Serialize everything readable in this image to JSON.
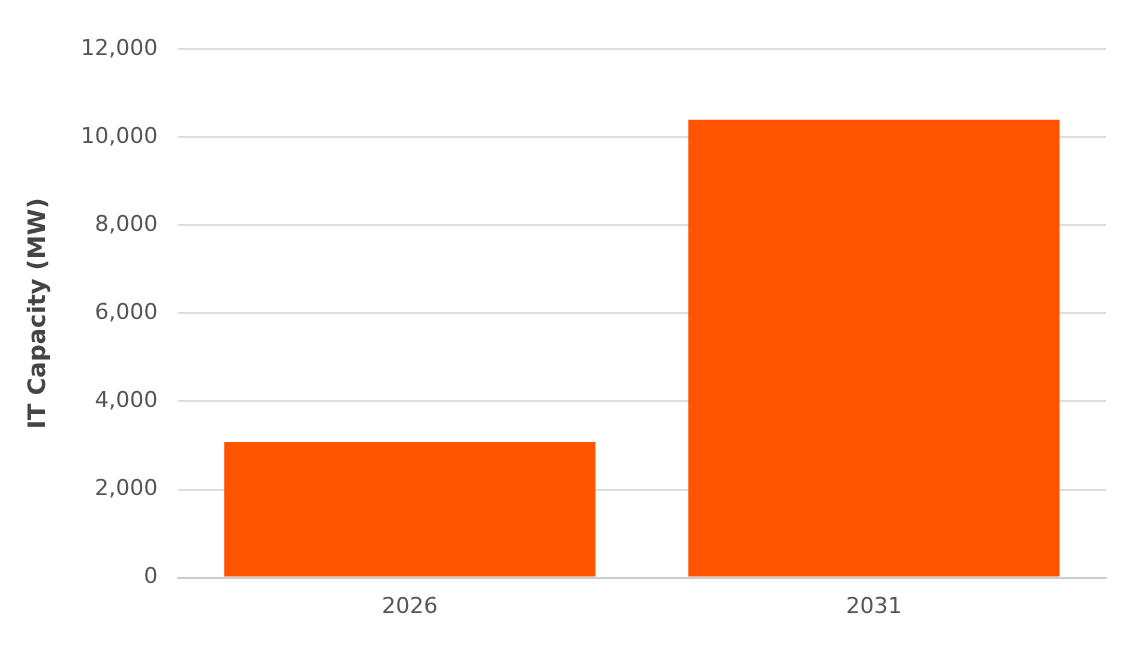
{
  "chart_data": {
    "type": "bar",
    "ylabel": "IT Capacity (MW)",
    "categories": [
      "2026",
      "2031"
    ],
    "series": [
      {
        "color": "#ff5500",
        "values": [
          3080,
          10400
        ]
      }
    ],
    "ylim": [
      0,
      12000
    ],
    "yticks": [
      0,
      {
        "value": 2000,
        "label": "2,000"
      },
      {
        "value": 4000,
        "label": "4,000"
      },
      {
        "value": 6000,
        "label": "6,000"
      },
      {
        "value": 8000,
        "label": "8,000"
      },
      {
        "value": 10000,
        "label": "10,000"
      },
      {
        "value": 12000,
        "label": "12,000"
      }
    ],
    "grid": "y",
    "legend": false
  }
}
